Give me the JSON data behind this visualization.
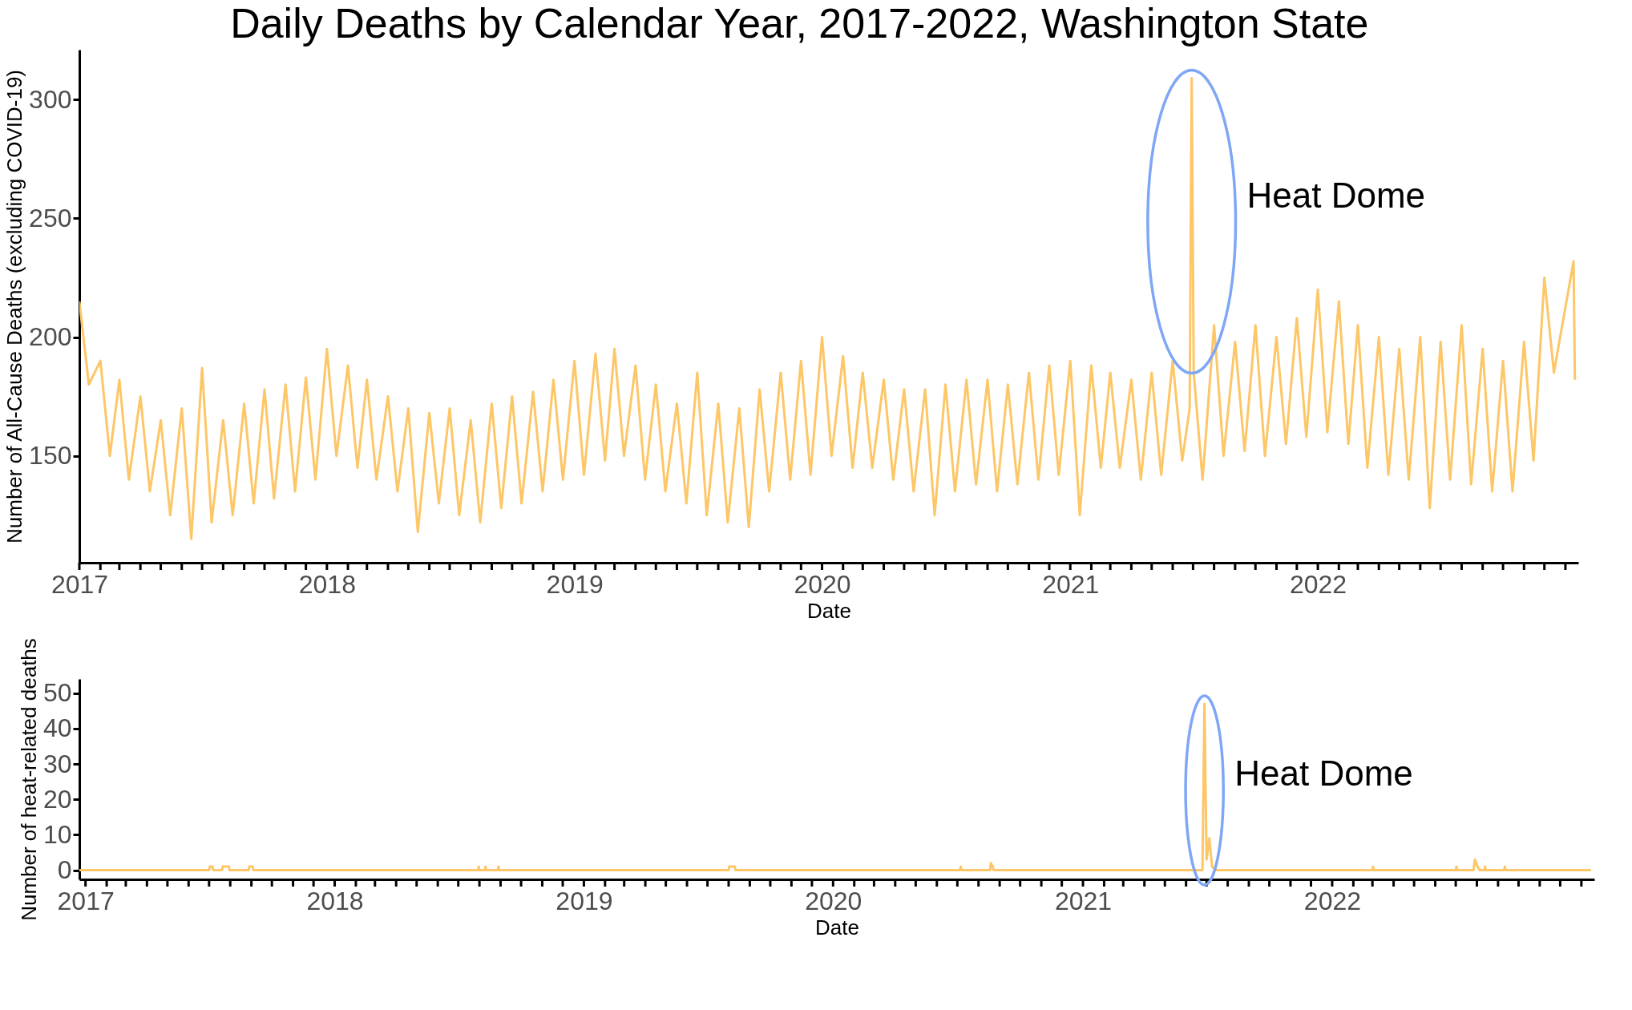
{
  "chart_data": [
    {
      "type": "line",
      "title": "Daily Deaths by Calendar Year, 2017-2022, Washington State",
      "xlabel": "Date",
      "ylabel": "Number of All-Cause Deaths (excluding COVID-19)",
      "xlim": [
        "2017-01-01",
        "2023-01-20"
      ],
      "ylim": [
        105,
        321
      ],
      "yticks": [
        150,
        200,
        250,
        300
      ],
      "xticks": [
        {
          "value": "2017-01-01",
          "label": "2017"
        },
        {
          "value": "2017-02-01",
          "label": null
        },
        {
          "value": "2017-03-01",
          "label": null
        },
        {
          "value": "2017-04-01",
          "label": null
        },
        {
          "value": "2017-05-01",
          "label": null
        },
        {
          "value": "2017-06-01",
          "label": null
        },
        {
          "value": "2017-07-01",
          "label": null
        },
        {
          "value": "2017-08-01",
          "label": null
        },
        {
          "value": "2017-09-01",
          "label": null
        },
        {
          "value": "2017-10-01",
          "label": null
        },
        {
          "value": "2017-11-01",
          "label": null
        },
        {
          "value": "2017-12-01",
          "label": null
        },
        {
          "value": "2018-01-01",
          "label": "2018"
        },
        {
          "value": "2018-02-01",
          "label": null
        },
        {
          "value": "2018-03-01",
          "label": null
        },
        {
          "value": "2018-04-01",
          "label": null
        },
        {
          "value": "2018-05-01",
          "label": null
        },
        {
          "value": "2018-06-01",
          "label": null
        },
        {
          "value": "2018-07-01",
          "label": null
        },
        {
          "value": "2018-08-01",
          "label": null
        },
        {
          "value": "2018-09-01",
          "label": null
        },
        {
          "value": "2018-10-01",
          "label": null
        },
        {
          "value": "2018-11-01",
          "label": null
        },
        {
          "value": "2018-12-01",
          "label": null
        },
        {
          "value": "2019-01-01",
          "label": "2019"
        },
        {
          "value": "2019-02-01",
          "label": null
        },
        {
          "value": "2019-03-01",
          "label": null
        },
        {
          "value": "2019-04-01",
          "label": null
        },
        {
          "value": "2019-05-01",
          "label": null
        },
        {
          "value": "2019-06-01",
          "label": null
        },
        {
          "value": "2019-07-01",
          "label": null
        },
        {
          "value": "2019-08-01",
          "label": null
        },
        {
          "value": "2019-09-01",
          "label": null
        },
        {
          "value": "2019-10-01",
          "label": null
        },
        {
          "value": "2019-11-01",
          "label": null
        },
        {
          "value": "2019-12-01",
          "label": null
        },
        {
          "value": "2020-01-01",
          "label": "2020"
        },
        {
          "value": "2020-02-01",
          "label": null
        },
        {
          "value": "2020-03-01",
          "label": null
        },
        {
          "value": "2020-04-01",
          "label": null
        },
        {
          "value": "2020-05-01",
          "label": null
        },
        {
          "value": "2020-06-01",
          "label": null
        },
        {
          "value": "2020-07-01",
          "label": null
        },
        {
          "value": "2020-08-01",
          "label": null
        },
        {
          "value": "2020-09-01",
          "label": null
        },
        {
          "value": "2020-10-01",
          "label": null
        },
        {
          "value": "2020-11-01",
          "label": null
        },
        {
          "value": "2020-12-01",
          "label": null
        },
        {
          "value": "2021-01-01",
          "label": "2021"
        },
        {
          "value": "2021-02-01",
          "label": null
        },
        {
          "value": "2021-03-01",
          "label": null
        },
        {
          "value": "2021-04-01",
          "label": null
        },
        {
          "value": "2021-05-01",
          "label": null
        },
        {
          "value": "2021-06-01",
          "label": null
        },
        {
          "value": "2021-07-01",
          "label": null
        },
        {
          "value": "2021-08-01",
          "label": null
        },
        {
          "value": "2021-09-01",
          "label": null
        },
        {
          "value": "2021-10-01",
          "label": null
        },
        {
          "value": "2021-11-01",
          "label": null
        },
        {
          "value": "2021-12-01",
          "label": null
        },
        {
          "value": "2022-01-01",
          "label": "2022"
        },
        {
          "value": "2022-02-01",
          "label": null
        },
        {
          "value": "2022-03-01",
          "label": null
        },
        {
          "value": "2022-04-01",
          "label": null
        },
        {
          "value": "2022-05-01",
          "label": null
        },
        {
          "value": "2022-06-01",
          "label": null
        },
        {
          "value": "2022-07-01",
          "label": null
        },
        {
          "value": "2022-08-01",
          "label": null
        },
        {
          "value": "2022-09-01",
          "label": null
        },
        {
          "value": "2022-10-01",
          "label": null
        },
        {
          "value": "2022-11-01",
          "label": null
        },
        {
          "value": "2022-12-01",
          "label": null
        },
        {
          "value": "2023-01-01",
          "label": null
        }
      ],
      "annotations": [
        "Heat Dome"
      ],
      "series": [
        {
          "color": "#fdc667",
          "x": [
            "2017-01-01",
            "2017-01-15",
            "2017-02-01",
            "2017-02-15",
            "2017-03-01",
            "2017-03-15",
            "2017-04-01",
            "2017-04-15",
            "2017-05-01",
            "2017-05-15",
            "2017-06-01",
            "2017-06-15",
            "2017-07-01",
            "2017-07-15",
            "2017-08-01",
            "2017-08-15",
            "2017-09-01",
            "2017-09-15",
            "2017-10-01",
            "2017-10-15",
            "2017-11-01",
            "2017-11-15",
            "2017-12-01",
            "2017-12-15",
            "2018-01-01",
            "2018-01-15",
            "2018-02-01",
            "2018-02-15",
            "2018-03-01",
            "2018-03-15",
            "2018-04-01",
            "2018-04-15",
            "2018-05-01",
            "2018-05-15",
            "2018-06-01",
            "2018-06-15",
            "2018-07-01",
            "2018-07-15",
            "2018-08-01",
            "2018-08-15",
            "2018-09-01",
            "2018-09-15",
            "2018-10-01",
            "2018-10-15",
            "2018-11-01",
            "2018-11-15",
            "2018-12-01",
            "2018-12-15",
            "2019-01-01",
            "2019-01-15",
            "2019-02-01",
            "2019-02-15",
            "2019-03-01",
            "2019-03-15",
            "2019-04-01",
            "2019-04-15",
            "2019-05-01",
            "2019-05-15",
            "2019-06-01",
            "2019-06-15",
            "2019-07-01",
            "2019-07-15",
            "2019-08-01",
            "2019-08-15",
            "2019-09-01",
            "2019-09-15",
            "2019-10-01",
            "2019-10-15",
            "2019-11-01",
            "2019-11-15",
            "2019-12-01",
            "2019-12-15",
            "2020-01-01",
            "2020-01-15",
            "2020-02-01",
            "2020-02-15",
            "2020-03-01",
            "2020-03-15",
            "2020-04-01",
            "2020-04-15",
            "2020-05-01",
            "2020-05-15",
            "2020-06-01",
            "2020-06-15",
            "2020-07-01",
            "2020-07-15",
            "2020-08-01",
            "2020-08-15",
            "2020-09-01",
            "2020-09-15",
            "2020-10-01",
            "2020-10-15",
            "2020-11-01",
            "2020-11-15",
            "2020-12-01",
            "2020-12-15",
            "2021-01-01",
            "2021-01-15",
            "2021-02-01",
            "2021-02-15",
            "2021-03-01",
            "2021-03-15",
            "2021-04-01",
            "2021-04-15",
            "2021-05-01",
            "2021-05-15",
            "2021-06-01",
            "2021-06-15",
            "2021-06-26",
            "2021-06-29",
            "2021-07-02",
            "2021-07-15",
            "2021-08-01",
            "2021-08-15",
            "2021-09-01",
            "2021-09-15",
            "2021-10-01",
            "2021-10-15",
            "2021-11-01",
            "2021-11-15",
            "2021-12-01",
            "2021-12-15",
            "2022-01-01",
            "2022-01-15",
            "2022-02-01",
            "2022-02-15",
            "2022-03-01",
            "2022-03-15",
            "2022-04-01",
            "2022-04-15",
            "2022-05-01",
            "2022-05-15",
            "2022-06-01",
            "2022-06-15",
            "2022-07-01",
            "2022-07-15",
            "2022-08-01",
            "2022-08-15",
            "2022-09-01",
            "2022-09-15",
            "2022-10-01",
            "2022-10-15",
            "2022-11-01",
            "2022-11-15",
            "2022-12-01",
            "2022-12-15",
            "2023-01-13",
            "2023-01-15"
          ],
          "values": [
            215,
            180,
            190,
            150,
            182,
            140,
            175,
            135,
            165,
            125,
            170,
            115,
            187,
            122,
            165,
            125,
            172,
            130,
            178,
            132,
            180,
            135,
            183,
            140,
            195,
            150,
            188,
            145,
            182,
            140,
            175,
            135,
            170,
            118,
            168,
            130,
            170,
            125,
            165,
            122,
            172,
            128,
            175,
            130,
            177,
            135,
            182,
            140,
            190,
            142,
            193,
            148,
            195,
            150,
            188,
            140,
            180,
            135,
            172,
            130,
            185,
            125,
            172,
            122,
            170,
            120,
            178,
            135,
            185,
            140,
            190,
            142,
            200,
            150,
            192,
            145,
            185,
            145,
            182,
            140,
            178,
            135,
            178,
            125,
            180,
            135,
            182,
            138,
            182,
            135,
            180,
            138,
            185,
            140,
            188,
            142,
            190,
            125,
            188,
            145,
            185,
            145,
            182,
            140,
            185,
            142,
            190,
            148,
            170,
            309,
            185,
            140,
            205,
            150,
            198,
            152,
            205,
            150,
            200,
            155,
            208,
            158,
            220,
            160,
            215,
            155,
            205,
            145,
            200,
            142,
            195,
            140,
            200,
            128,
            198,
            140,
            205,
            138,
            195,
            135,
            190,
            135,
            198,
            148,
            225,
            185,
            232,
            182
          ]
        }
      ]
    },
    {
      "type": "line",
      "xlabel": "Date",
      "ylabel": "Number of heat-related deaths",
      "xlim": [
        "2016-12-23",
        "2023-01-20"
      ],
      "ylim": [
        -2.6,
        54
      ],
      "yticks": [
        0,
        10,
        20,
        30,
        40,
        50
      ],
      "xticks": [
        {
          "value": "2017-01-01",
          "label": "2017"
        },
        {
          "value": "2017-02-01",
          "label": null
        },
        {
          "value": "2017-03-01",
          "label": null
        },
        {
          "value": "2017-04-01",
          "label": null
        },
        {
          "value": "2017-05-01",
          "label": null
        },
        {
          "value": "2017-06-01",
          "label": null
        },
        {
          "value": "2017-07-01",
          "label": null
        },
        {
          "value": "2017-08-01",
          "label": null
        },
        {
          "value": "2017-09-01",
          "label": null
        },
        {
          "value": "2017-10-01",
          "label": null
        },
        {
          "value": "2017-11-01",
          "label": null
        },
        {
          "value": "2017-12-01",
          "label": null
        },
        {
          "value": "2018-01-01",
          "label": "2018"
        },
        {
          "value": "2018-02-01",
          "label": null
        },
        {
          "value": "2018-03-01",
          "label": null
        },
        {
          "value": "2018-04-01",
          "label": null
        },
        {
          "value": "2018-05-01",
          "label": null
        },
        {
          "value": "2018-06-01",
          "label": null
        },
        {
          "value": "2018-07-01",
          "label": null
        },
        {
          "value": "2018-08-01",
          "label": null
        },
        {
          "value": "2018-09-01",
          "label": null
        },
        {
          "value": "2018-10-01",
          "label": null
        },
        {
          "value": "2018-11-01",
          "label": null
        },
        {
          "value": "2018-12-01",
          "label": null
        },
        {
          "value": "2019-01-01",
          "label": "2019"
        },
        {
          "value": "2019-02-01",
          "label": null
        },
        {
          "value": "2019-03-01",
          "label": null
        },
        {
          "value": "2019-04-01",
          "label": null
        },
        {
          "value": "2019-05-01",
          "label": null
        },
        {
          "value": "2019-06-01",
          "label": null
        },
        {
          "value": "2019-07-01",
          "label": null
        },
        {
          "value": "2019-08-01",
          "label": null
        },
        {
          "value": "2019-09-01",
          "label": null
        },
        {
          "value": "2019-10-01",
          "label": null
        },
        {
          "value": "2019-11-01",
          "label": null
        },
        {
          "value": "2019-12-01",
          "label": null
        },
        {
          "value": "2020-01-01",
          "label": "2020"
        },
        {
          "value": "2020-02-01",
          "label": null
        },
        {
          "value": "2020-03-01",
          "label": null
        },
        {
          "value": "2020-04-01",
          "label": null
        },
        {
          "value": "2020-05-01",
          "label": null
        },
        {
          "value": "2020-06-01",
          "label": null
        },
        {
          "value": "2020-07-01",
          "label": null
        },
        {
          "value": "2020-08-01",
          "label": null
        },
        {
          "value": "2020-09-01",
          "label": null
        },
        {
          "value": "2020-10-01",
          "label": null
        },
        {
          "value": "2020-11-01",
          "label": null
        },
        {
          "value": "2020-12-01",
          "label": null
        },
        {
          "value": "2021-01-01",
          "label": "2021"
        },
        {
          "value": "2021-02-01",
          "label": null
        },
        {
          "value": "2021-03-01",
          "label": null
        },
        {
          "value": "2021-04-01",
          "label": null
        },
        {
          "value": "2021-05-01",
          "label": null
        },
        {
          "value": "2021-06-01",
          "label": null
        },
        {
          "value": "2021-07-01",
          "label": null
        },
        {
          "value": "2021-08-01",
          "label": null
        },
        {
          "value": "2021-09-01",
          "label": null
        },
        {
          "value": "2021-10-01",
          "label": null
        },
        {
          "value": "2021-11-01",
          "label": null
        },
        {
          "value": "2021-12-01",
          "label": null
        },
        {
          "value": "2022-01-01",
          "label": "2022"
        },
        {
          "value": "2022-02-01",
          "label": null
        },
        {
          "value": "2022-03-01",
          "label": null
        },
        {
          "value": "2022-04-01",
          "label": null
        },
        {
          "value": "2022-05-01",
          "label": null
        },
        {
          "value": "2022-06-01",
          "label": null
        },
        {
          "value": "2022-07-01",
          "label": null
        },
        {
          "value": "2022-08-01",
          "label": null
        },
        {
          "value": "2022-09-01",
          "label": null
        },
        {
          "value": "2022-10-01",
          "label": null
        },
        {
          "value": "2022-11-01",
          "label": null
        },
        {
          "value": "2022-12-01",
          "label": null
        },
        {
          "value": "2023-01-01",
          "label": null
        }
      ],
      "annotations": [
        "Heat Dome"
      ],
      "series": [
        {
          "color": "#fdc667",
          "x": [
            "2016-12-23",
            "2017-07-01",
            "2017-07-02",
            "2017-07-06",
            "2017-07-07",
            "2017-07-20",
            "2017-07-21",
            "2017-07-30",
            "2017-07-31",
            "2017-08-28",
            "2017-08-29",
            "2017-09-03",
            "2017-09-04",
            "2018-07-30",
            "2018-07-31",
            "2018-08-01",
            "2018-08-09",
            "2018-08-10",
            "2018-08-11",
            "2018-08-28",
            "2018-08-29",
            "2018-08-30",
            "2019-08-01",
            "2019-08-02",
            "2019-08-10",
            "2019-08-11",
            "2020-07-05",
            "2020-07-06",
            "2020-07-07",
            "2020-08-18",
            "2020-08-19",
            "2020-08-22",
            "2020-08-23",
            "2021-06-25",
            "2021-06-28",
            "2021-07-01",
            "2021-07-05",
            "2021-07-09",
            "2021-07-15",
            "2022-03-01",
            "2022-03-02",
            "2022-03-03",
            "2022-07-01",
            "2022-07-02",
            "2022-07-03",
            "2022-07-27",
            "2022-07-29",
            "2022-08-02",
            "2022-08-05",
            "2022-08-12",
            "2022-08-13",
            "2022-08-14",
            "2022-09-10",
            "2022-09-11",
            "2022-09-12",
            "2023-01-15"
          ],
          "values": [
            0,
            0,
            1,
            1,
            0,
            0,
            1,
            1,
            0,
            0,
            1,
            1,
            0,
            0,
            1,
            0,
            0,
            1,
            0,
            0,
            1,
            0,
            0,
            1,
            1,
            0,
            0,
            1,
            0,
            0,
            2,
            1,
            0,
            0,
            47,
            3,
            9,
            1,
            0,
            0,
            1,
            0,
            0,
            1,
            0,
            0,
            3,
            1,
            0,
            0,
            1,
            0,
            0,
            1,
            0,
            0
          ]
        }
      ]
    }
  ]
}
